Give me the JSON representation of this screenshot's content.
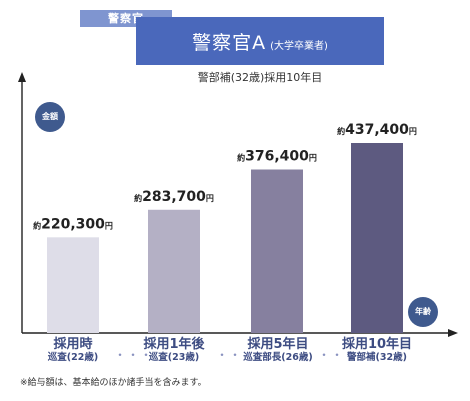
{
  "header": {
    "tag": "警察官",
    "title": "警察官A",
    "title_sub": "(大学卒業者)",
    "subtitle": "警部補(32歳)採用10年目"
  },
  "chart_data": {
    "type": "bar",
    "ylabel": "金額",
    "xlabel": "年齢",
    "categories": [
      "採用時",
      "採用1年後",
      "採用5年目",
      "採用10年目"
    ],
    "sublabels": [
      "巡査(22歳)",
      "巡査(23歳)",
      "巡査部長(26歳)",
      "警部補(32歳)"
    ],
    "values": [
      220300,
      283700,
      376400,
      437400
    ],
    "value_labels": [
      "220,300",
      "283,700",
      "376,400",
      "437,400"
    ],
    "value_prefix": "約",
    "value_suffix": "円",
    "colors": [
      "#dedde8",
      "#b4b0c5",
      "#86809f",
      "#5d5a80"
    ],
    "axis_color": "#222222"
  },
  "footnote": "※給与額は、基本給のほか諸手当を含みます。",
  "separator": "・・・"
}
